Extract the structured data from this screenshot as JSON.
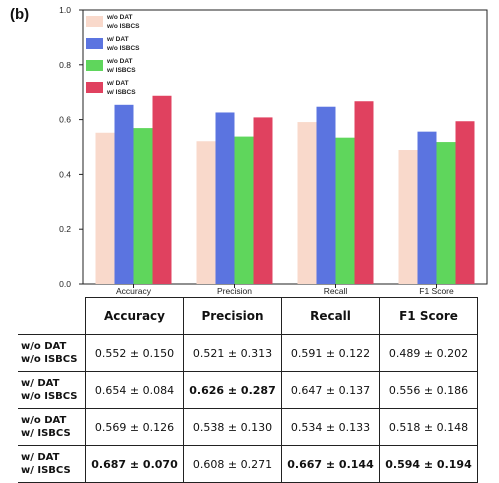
{
  "panel_label": "(b)",
  "chart_data": {
    "type": "bar",
    "categories": [
      "Accuracy",
      "Precision",
      "Recall",
      "F1 Score"
    ],
    "series": [
      {
        "name": "w/o DAT\nw/o ISBCS",
        "values": [
          0.552,
          0.521,
          0.591,
          0.489
        ],
        "color": "#f9d9cb"
      },
      {
        "name": "w/ DAT\nw/o ISBCS",
        "values": [
          0.654,
          0.626,
          0.647,
          0.556
        ],
        "color": "#5b74e0"
      },
      {
        "name": "w/o DAT\nw/ ISBCS",
        "values": [
          0.569,
          0.538,
          0.534,
          0.518
        ],
        "color": "#5fd65c"
      },
      {
        "name": "w/ DAT\nw/ ISBCS",
        "values": [
          0.687,
          0.608,
          0.667,
          0.594
        ],
        "color": "#e0415f"
      }
    ],
    "ylim": [
      0,
      1.0
    ],
    "yticks": [
      "0.0",
      "0.2",
      "0.4",
      "0.6",
      "0.8",
      "1.0"
    ],
    "xlabel": "",
    "ylabel": "",
    "legend": "top-left",
    "grid": false
  },
  "table": {
    "headers": [
      "Accuracy",
      "Precision",
      "Recall",
      "F1 Score"
    ],
    "rows": [
      {
        "label_line1": "w/o DAT",
        "label_line2": "w/o ISBCS",
        "cells": [
          {
            "text": "0.552 ± 0.150",
            "bold": false
          },
          {
            "text": "0.521 ± 0.313",
            "bold": false
          },
          {
            "text": "0.591 ± 0.122",
            "bold": false
          },
          {
            "text": "0.489 ± 0.202",
            "bold": false
          }
        ]
      },
      {
        "label_line1": "w/ DAT",
        "label_line2": "w/o ISBCS",
        "cells": [
          {
            "text": "0.654 ± 0.084",
            "bold": false
          },
          {
            "text": "0.626 ± 0.287",
            "bold": true
          },
          {
            "text": "0.647 ± 0.137",
            "bold": false
          },
          {
            "text": "0.556 ± 0.186",
            "bold": false
          }
        ]
      },
      {
        "label_line1": "w/o DAT",
        "label_line2": "w/ ISBCS",
        "cells": [
          {
            "text": "0.569 ± 0.126",
            "bold": false
          },
          {
            "text": "0.538 ± 0.130",
            "bold": false
          },
          {
            "text": "0.534 ± 0.133",
            "bold": false
          },
          {
            "text": "0.518 ± 0.148",
            "bold": false
          }
        ]
      },
      {
        "label_line1": "w/ DAT",
        "label_line2": "w/ ISBCS",
        "cells": [
          {
            "text": "0.687 ± 0.070",
            "bold": true
          },
          {
            "text": "0.608 ± 0.271",
            "bold": false
          },
          {
            "text": "0.667 ± 0.144",
            "bold": true
          },
          {
            "text": "0.594 ± 0.194",
            "bold": true
          }
        ]
      }
    ]
  }
}
